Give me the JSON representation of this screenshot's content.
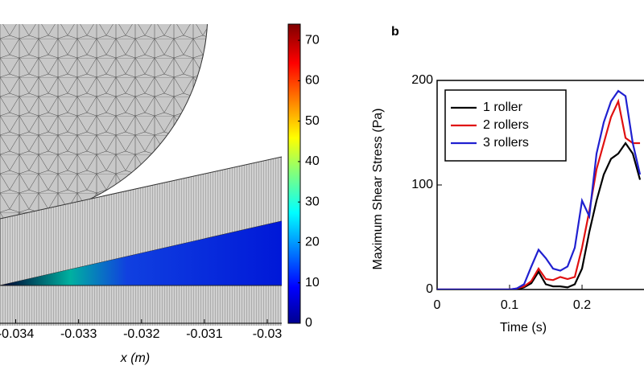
{
  "chart_data": [
    {
      "type": "contour",
      "xlabel": "x (m)",
      "xlim": [
        -0.03425,
        -0.02977
      ],
      "xticks": [
        -0.034,
        -0.033,
        -0.032,
        -0.031,
        -0.03
      ],
      "colorbar": {
        "clim": [
          0,
          74
        ],
        "ticks": [
          0,
          10,
          20,
          30,
          40,
          50,
          60,
          70
        ]
      }
    },
    {
      "type": "line",
      "panel_label": "b",
      "xlabel": "Time (s)",
      "ylabel": "Maximum Shear Stress (Pa)",
      "xlim": [
        0,
        0.2855
      ],
      "xticks": [
        0,
        0.1,
        0.2
      ],
      "ylim": [
        0,
        200
      ],
      "yticks": [
        0,
        100,
        200
      ],
      "x": [
        0,
        0.01,
        0.02,
        0.03,
        0.04,
        0.05,
        0.06,
        0.07,
        0.08,
        0.09,
        0.1,
        0.11,
        0.12,
        0.13,
        0.14,
        0.15,
        0.16,
        0.17,
        0.18,
        0.19,
        0.2,
        0.21,
        0.22,
        0.23,
        0.24,
        0.25,
        0.26,
        0.27,
        0.28
      ],
      "series": [
        {
          "name": "1 roller",
          "color": "#000000",
          "values": [
            0,
            0,
            0,
            0,
            0,
            0,
            0,
            0,
            0,
            0,
            0,
            0,
            2,
            6,
            17,
            5,
            3,
            3,
            2,
            5,
            20,
            55,
            85,
            110,
            125,
            130,
            140,
            130,
            105
          ]
        },
        {
          "name": "2 rollers",
          "color": "#e01010",
          "values": [
            0,
            0,
            0,
            0,
            0,
            0,
            0,
            0,
            0,
            0,
            0,
            1,
            3,
            8,
            20,
            10,
            9,
            12,
            10,
            12,
            40,
            75,
            115,
            140,
            165,
            180,
            145,
            140,
            140
          ]
        },
        {
          "name": "3 rollers",
          "color": "#2020d0",
          "values": [
            0,
            0,
            0,
            0,
            0,
            0,
            0,
            0,
            0,
            0,
            0,
            1,
            5,
            22,
            38,
            30,
            20,
            18,
            22,
            40,
            85,
            70,
            130,
            160,
            180,
            190,
            185,
            140,
            110
          ]
        }
      ]
    }
  ]
}
